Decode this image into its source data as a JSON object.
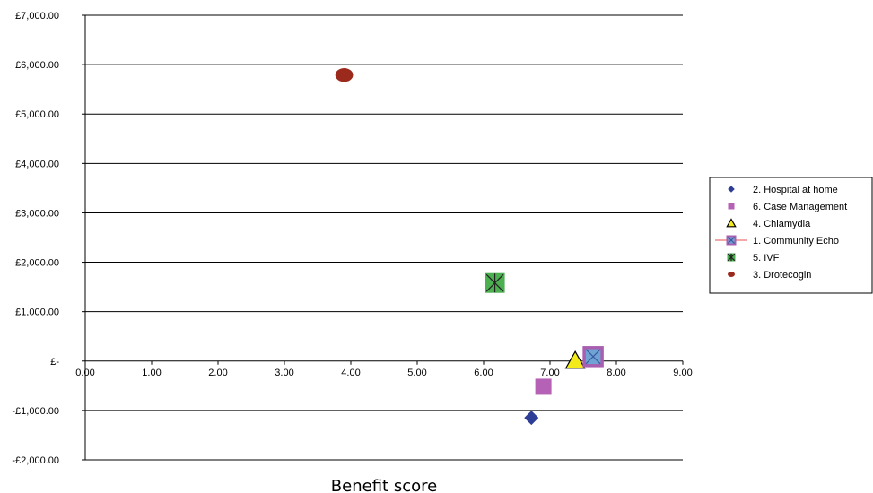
{
  "chart_data": {
    "type": "scatter",
    "title": "",
    "xlabel": "Benefit score",
    "ylabel": "",
    "xlim": [
      0,
      9
    ],
    "ylim": [
      -2000,
      7000
    ],
    "x_ticks": [
      "0.00",
      "1.00",
      "2.00",
      "3.00",
      "4.00",
      "5.00",
      "6.00",
      "7.00",
      "8.00",
      "9.00"
    ],
    "x_tick_values": [
      0,
      1,
      2,
      3,
      4,
      5,
      6,
      7,
      8,
      9
    ],
    "y_ticks": [
      "£7,000.00",
      "£6,000.00",
      "£5,000.00",
      "£4,000.00",
      "£3,000.00",
      "£2,000.00",
      "£1,000.00",
      "£-",
      "-£1,000.00",
      "-£2,000.00"
    ],
    "y_tick_values": [
      7000,
      6000,
      5000,
      4000,
      3000,
      2000,
      1000,
      0,
      -1000,
      -2000
    ],
    "grid": "horizontal",
    "legend_position": "right",
    "series": [
      {
        "name": "2. Hospital at home",
        "x": 6.72,
        "y": -1150,
        "marker": "diamond",
        "color": "#2E3E96"
      },
      {
        "name": "6. Case Management",
        "x": 6.9,
        "y": -520,
        "marker": "square",
        "color": "#B561B5"
      },
      {
        "name": "4. Chlamydia",
        "x": 7.38,
        "y": 10,
        "marker": "triangle",
        "color": "#F2EA1A"
      },
      {
        "name": "1. Community Echo",
        "x": 7.65,
        "y": 90,
        "marker": "square-x",
        "color": "#A85FB0"
      },
      {
        "name": "5. IVF",
        "x": 6.17,
        "y": 1580,
        "marker": "square-star",
        "color": "#4CAF50"
      },
      {
        "name": "3. Drotecogin",
        "x": 3.9,
        "y": 5790,
        "marker": "circle",
        "color": "#9B2A1D"
      }
    ]
  }
}
